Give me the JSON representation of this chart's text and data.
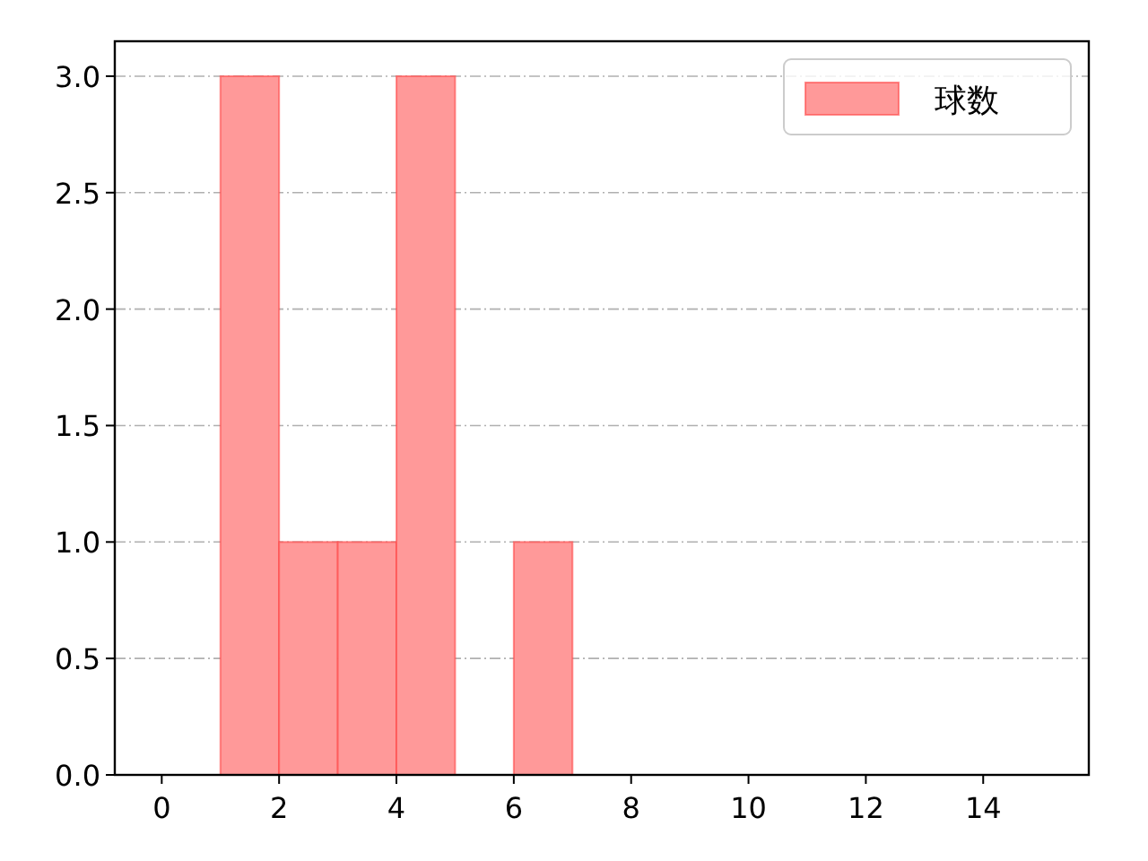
{
  "chart_data": {
    "type": "histogram",
    "bins": [
      1,
      2,
      3,
      4,
      5,
      6,
      7
    ],
    "series": [
      {
        "name": "球数",
        "color": "#ff9999",
        "values": [
          3,
          1,
          1,
          3,
          0,
          1
        ]
      }
    ],
    "xlim": [
      -0.8,
      15.8
    ],
    "xticks": [
      0,
      2,
      4,
      6,
      8,
      10,
      12,
      14
    ],
    "ylim": [
      0,
      3.15
    ],
    "yticks": [
      {
        "value": 0,
        "label": "0.0"
      },
      {
        "value": 0.5,
        "label": "0.5"
      },
      {
        "value": 1,
        "label": "1.0"
      },
      {
        "value": 1.5,
        "label": "1.5"
      },
      {
        "value": 2,
        "label": "2.0"
      },
      {
        "value": 2.5,
        "label": "2.5"
      },
      {
        "value": 3,
        "label": "3.0"
      }
    ],
    "grid": "y",
    "legend": "top right"
  }
}
